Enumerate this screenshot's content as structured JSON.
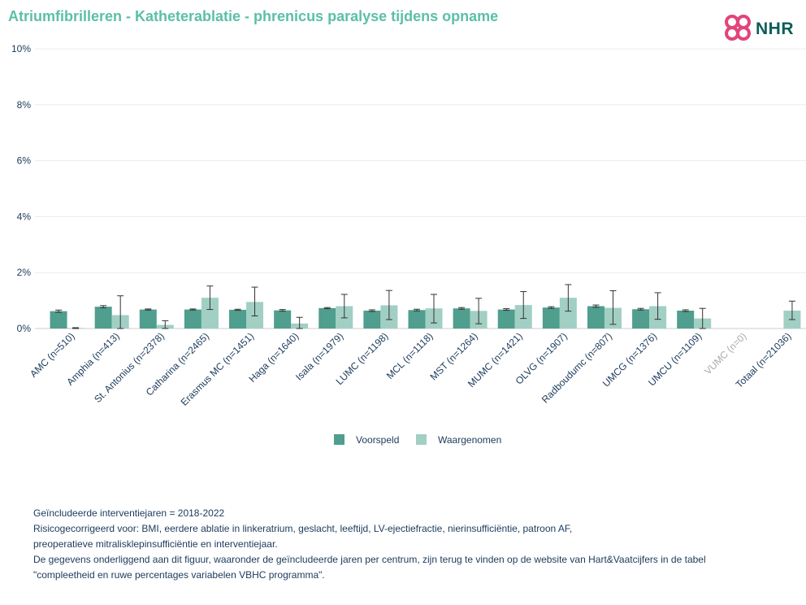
{
  "title": "Atriumfibrilleren - Katheterablatie - phrenicus paralyse tijdens opname",
  "logo_text": "NHR",
  "colors": {
    "title": "#5bbfa8",
    "voorspeld": "#4f9e8e",
    "waargenomen": "#a2cfc3",
    "axis_text": "#1b3a5c",
    "muted": "#aaaaaa",
    "logo_pink": "#e0457b"
  },
  "chart_data": {
    "type": "bar",
    "categories": [
      "AMC (n=510)",
      "Amphia (n=413)",
      "St. Antonius (n=2378)",
      "Catharina (n=2465)",
      "Erasmus MC (n=1451)",
      "Haga (n=1640)",
      "Isala (n=1979)",
      "LUMC (n=1198)",
      "MCL (n=1118)",
      "MST (n=1264)",
      "MUMC (n=1421)",
      "OLVG (n=1907)",
      "Radboudumc (n=807)",
      "UMCG (n=1376)",
      "UMCU (n=1109)",
      "VUMC (n=0)",
      "Totaal (n=21036)"
    ],
    "muted_categories": [
      "VUMC (n=0)"
    ],
    "series": [
      {
        "name": "Voorspeld",
        "values": [
          0.62,
          0.78,
          0.68,
          0.68,
          0.67,
          0.65,
          0.73,
          0.64,
          0.66,
          0.72,
          0.68,
          0.75,
          0.8,
          0.69,
          0.64,
          null,
          null
        ],
        "err_low": [
          0.58,
          0.74,
          0.66,
          0.66,
          0.65,
          0.62,
          0.71,
          0.61,
          0.63,
          0.69,
          0.65,
          0.72,
          0.76,
          0.66,
          0.61,
          null,
          null
        ],
        "err_high": [
          0.66,
          0.82,
          0.7,
          0.7,
          0.69,
          0.68,
          0.75,
          0.67,
          0.69,
          0.75,
          0.71,
          0.78,
          0.84,
          0.72,
          0.67,
          null,
          null
        ]
      },
      {
        "name": "Waargenomen",
        "values": [
          0.02,
          0.48,
          0.13,
          1.1,
          0.95,
          0.18,
          0.8,
          0.83,
          0.72,
          0.63,
          0.84,
          1.1,
          0.74,
          0.8,
          0.36,
          null,
          0.64
        ],
        "err_low": [
          0.0,
          0.0,
          0.0,
          0.68,
          0.45,
          0.0,
          0.38,
          0.32,
          0.2,
          0.17,
          0.36,
          0.62,
          0.15,
          0.33,
          0.0,
          null,
          0.32
        ],
        "err_high": [
          0.03,
          1.17,
          0.28,
          1.52,
          1.48,
          0.4,
          1.22,
          1.36,
          1.22,
          1.08,
          1.32,
          1.57,
          1.35,
          1.28,
          0.72,
          null,
          0.98
        ]
      }
    ],
    "ylim": [
      0,
      10
    ],
    "yticks": [
      0,
      2,
      4,
      6,
      8,
      10
    ],
    "ytick_labels": [
      "0%",
      "2%",
      "4%",
      "6%",
      "8%",
      "10%"
    ],
    "grid": true,
    "legend_position": "bottom-center"
  },
  "footnotes": [
    "Geïncludeerde interventiejaren = 2018-2022",
    "Risicogecorrigeerd voor: BMI, eerdere ablatie in linkeratrium, geslacht, leeftijd, LV-ejectiefractie, nierinsufficiëntie, patroon AF,",
    "preoperatieve mitralisklepinsufficiëntie en interventiejaar.",
    "De gegevens onderliggend aan dit figuur, waaronder de geïncludeerde jaren per centrum, zijn terug te vinden op de website van Hart&Vaatcijfers in de tabel",
    "\"compleetheid en ruwe percentages variabelen VBHC programma\"."
  ]
}
